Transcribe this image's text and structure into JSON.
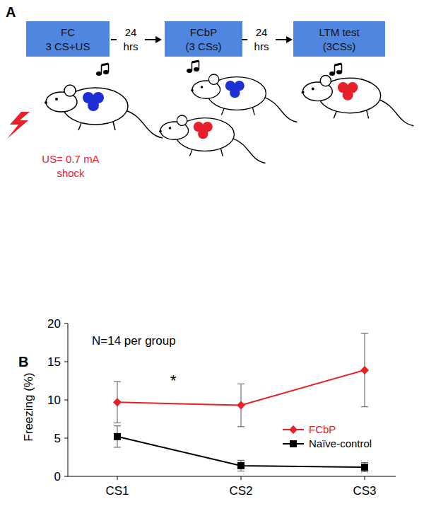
{
  "diagram": {
    "panel_label": "A",
    "boxes": [
      {
        "lines": [
          "FC",
          "3 CS+US"
        ]
      },
      {
        "lines": [
          "FCbP",
          "(3 CSs)"
        ]
      },
      {
        "lines": [
          "LTM test",
          "(3CSs)"
        ]
      }
    ],
    "intervals": [
      {
        "lines": [
          "24",
          "hrs"
        ]
      },
      {
        "lines": [
          "24",
          "hrs"
        ]
      }
    ],
    "stimulus_label": [
      "US= 0.7 mA",
      "shock"
    ]
  },
  "chart_data": {
    "panel_label": "B",
    "type": "line",
    "y_label": "Freezing (%)",
    "annotations": [
      "N=14 per group",
      "*"
    ],
    "categories": [
      "CS1",
      "CS2",
      "CS3"
    ],
    "series": [
      {
        "name": "FCbP",
        "color": "#e8202a",
        "marker": "diamond",
        "values": [
          9.7,
          9.3,
          13.9
        ],
        "errors": [
          2.7,
          2.8,
          4.8
        ]
      },
      {
        "name": "Naïve-control",
        "color": "#000000",
        "marker": "square",
        "values": [
          5.2,
          1.4,
          1.2
        ],
        "errors": [
          1.4,
          0.7,
          0.6
        ]
      }
    ],
    "ylim": [
      0,
      20
    ],
    "yticks": [
      0,
      5,
      10,
      15,
      20
    ],
    "legend": "lower right"
  }
}
